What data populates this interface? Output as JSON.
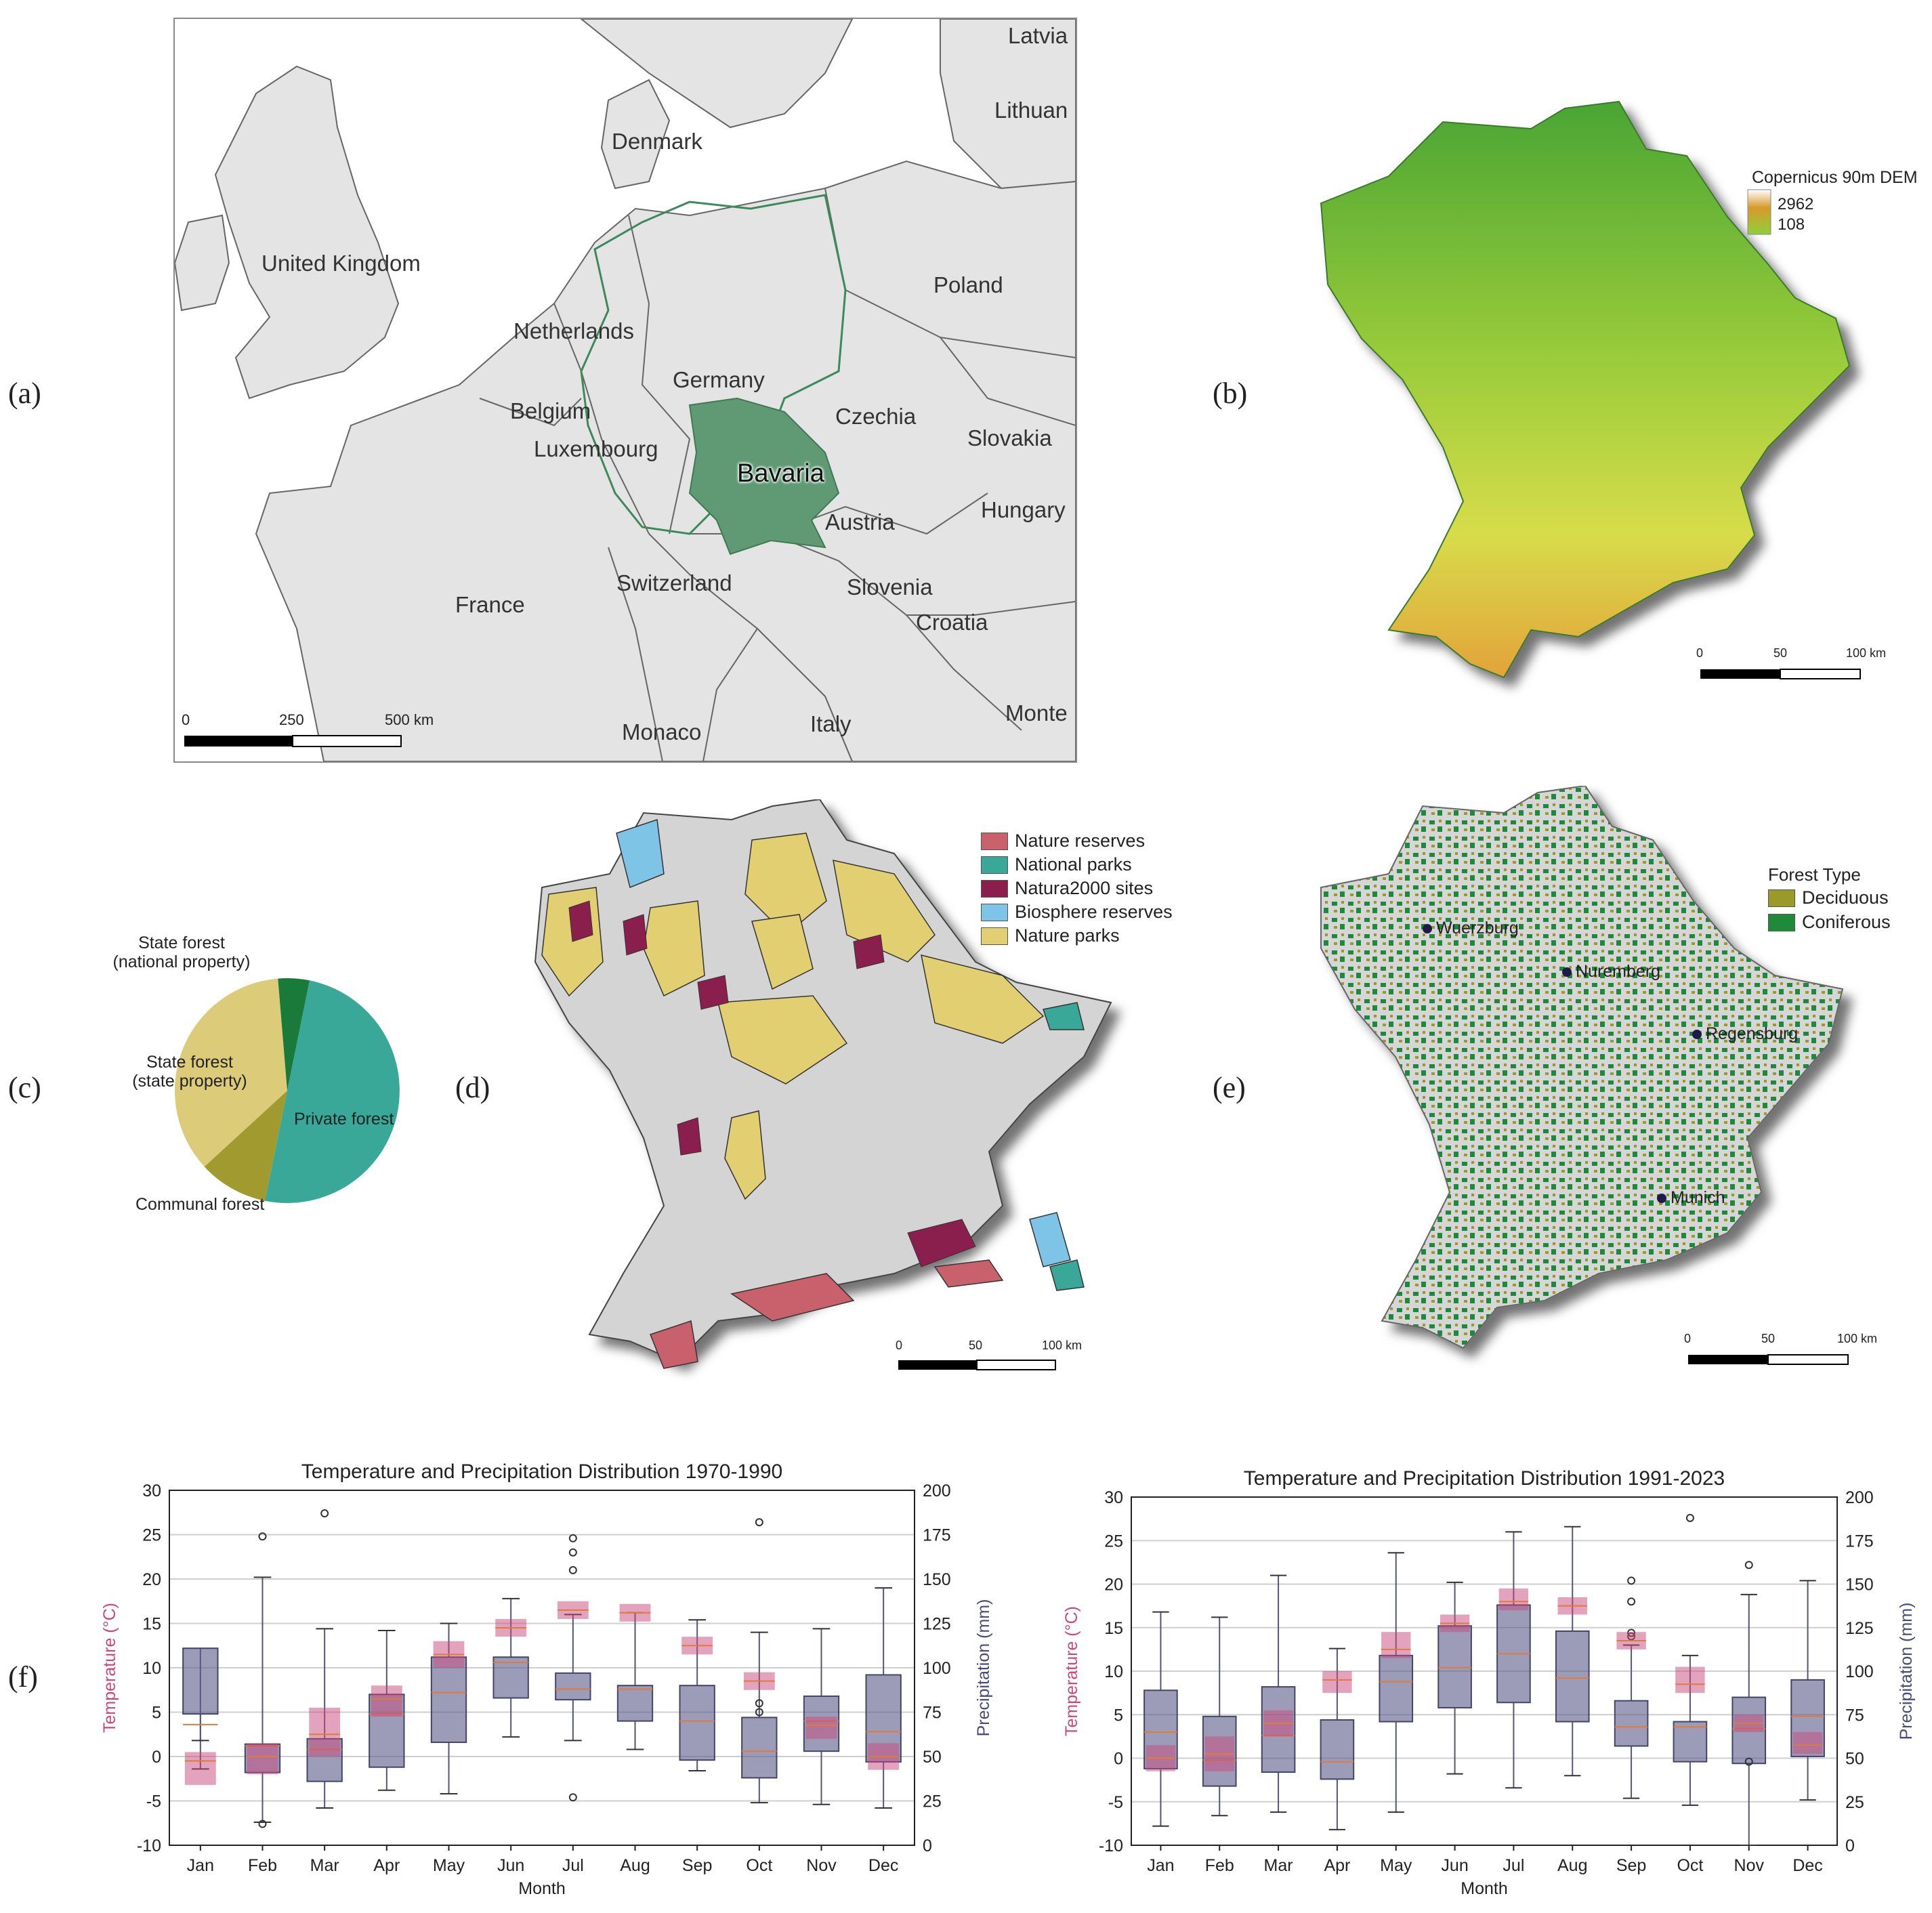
{
  "panels": {
    "a": {
      "label": "(a)"
    },
    "b": {
      "label": "(b)"
    },
    "c": {
      "label": "(c)"
    },
    "d": {
      "label": "(d)"
    },
    "e": {
      "label": "(e)"
    },
    "f": {
      "label": "(f)"
    }
  },
  "map_a": {
    "countries": [
      "Latvia",
      "Lithuan",
      "Denmark",
      "United Kingdom",
      "Poland",
      "Netherlands",
      "Germany",
      "Belgium",
      "Czechia",
      "Slovakia",
      "Luxembourg",
      "Bavaria",
      "Hungary",
      "Austria",
      "Switzerland",
      "Slovenia",
      "France",
      "Croatia",
      "Monte",
      "Italy",
      "Monaco"
    ],
    "scale": {
      "ticks": [
        "0",
        "250",
        "500 km"
      ]
    }
  },
  "map_b": {
    "legend_title": "Copernicus 90m DEM",
    "legend_max": "2962",
    "legend_min": "108",
    "scale": {
      "ticks": [
        "0",
        "50",
        "100 km"
      ]
    }
  },
  "pie_c": {
    "labels": {
      "state_national_1": "State forest",
      "state_national_2": "(national property)",
      "state_state_1": "State forest",
      "state_state_2": "(state property)",
      "private": "Private forest",
      "communal": "Communal forest"
    },
    "colors": {
      "private": "#3aa898",
      "communal": "#a19a2e",
      "state_state": "#dccb78",
      "state_national": "#1a7a3a"
    }
  },
  "map_d": {
    "legend": [
      "Nature reserves",
      "National parks",
      "Natura2000 sites",
      "Biosphere reserves",
      "Nature parks"
    ],
    "colors": [
      "#c8616b",
      "#3aa898",
      "#8a1f4e",
      "#7ec4e6",
      "#e2cf72"
    ],
    "scale": {
      "ticks": [
        "0",
        "50",
        "100 km"
      ]
    }
  },
  "map_e": {
    "legend_title": "Forest Type",
    "legend": [
      "Deciduous",
      "Coniferous"
    ],
    "colors": [
      "#9a9a2a",
      "#1f8a3a"
    ],
    "cities": [
      "Wuerzburg",
      "Nuremberg",
      "Regensburg",
      "Munich"
    ],
    "scale": {
      "ticks": [
        "0",
        "50",
        "100 km"
      ]
    }
  },
  "chart_data": [
    {
      "type": "box",
      "title": "Temperature and Precipitation Distribution 1970-1990",
      "xlabel": "Month",
      "ylabel_left": "Temperature (°C)",
      "ylabel_right": "Precipitation (mm)",
      "categories": [
        "Jan",
        "Feb",
        "Mar",
        "Apr",
        "May",
        "Jun",
        "Jul",
        "Aug",
        "Sep",
        "Oct",
        "Nov",
        "Dec"
      ],
      "ylim_left": [
        -10,
        30
      ],
      "ylim_right": [
        0,
        200
      ],
      "yticks_left": [
        "-10",
        "-5",
        "0",
        "5",
        "10",
        "15",
        "20",
        "25",
        "30"
      ],
      "yticks_right": [
        "0",
        "25",
        "50",
        "75",
        "100",
        "125",
        "150",
        "175",
        "200"
      ],
      "temperature_iqr": [
        [
          -3.2,
          0.5
        ],
        [
          -2.0,
          1.5
        ],
        [
          0,
          5.5
        ],
        [
          4.5,
          8
        ],
        [
          10,
          13
        ],
        [
          13.5,
          15.5
        ],
        [
          15.5,
          17.5
        ],
        [
          15.2,
          17.2
        ],
        [
          11.5,
          13.5
        ],
        [
          7.5,
          9.5
        ],
        [
          2,
          4.5
        ],
        [
          -1.5,
          1.5
        ]
      ],
      "temperature_median": [
        -0.5,
        0,
        2.5,
        6.5,
        11.5,
        14.5,
        16.5,
        16.2,
        12.5,
        8.5,
        3.5,
        0
      ],
      "precip_box": [
        [
          43,
          74,
          95,
          111,
          59
        ],
        [
          13,
          41,
          47,
          57,
          151
        ],
        [
          21,
          36,
          46,
          60,
          122
        ],
        [
          31,
          44,
          62,
          85,
          121
        ],
        [
          29,
          58,
          72,
          106,
          125
        ],
        [
          61,
          83,
          97,
          106,
          139
        ],
        [
          59,
          82,
          88,
          97,
          130
        ],
        [
          54,
          70,
          79,
          90,
          131
        ],
        [
          42,
          48,
          58,
          90,
          127
        ],
        [
          24,
          38,
          53,
          72,
          120
        ],
        [
          23,
          53,
          63,
          84,
          122
        ],
        [
          21,
          47,
          64,
          96,
          145
        ]
      ],
      "precip_median": [
        68,
        56,
        54,
        74,
        86,
        103,
        88,
        88,
        70,
        53,
        70,
        64
      ],
      "precip_outliers": [
        [],
        [
          174,
          12
        ],
        [
          187
        ],
        [],
        [],
        [],
        [
          173,
          165,
          155,
          27
        ],
        [],
        [],
        [
          182,
          80,
          75
        ],
        [],
        []
      ]
    },
    {
      "type": "box",
      "title": "Temperature and Precipitation Distribution 1991-2023",
      "xlabel": "Month",
      "ylabel_left": "Temperature (°C)",
      "ylabel_right": "Precipitation (mm)",
      "categories": [
        "Jan",
        "Feb",
        "Mar",
        "Apr",
        "May",
        "Jun",
        "Jul",
        "Aug",
        "Sep",
        "Oct",
        "Nov",
        "Dec"
      ],
      "ylim_left": [
        -10,
        30
      ],
      "ylim_right": [
        0,
        200
      ],
      "yticks_left": [
        "-10",
        "-5",
        "0",
        "5",
        "10",
        "15",
        "20",
        "25",
        "30"
      ],
      "yticks_right": [
        "0",
        "25",
        "50",
        "75",
        "100",
        "125",
        "150",
        "175",
        "200"
      ],
      "temperature_iqr": [
        [
          -1.5,
          1.5
        ],
        [
          -1.5,
          2.5
        ],
        [
          2.5,
          5.5
        ],
        [
          7.5,
          10
        ],
        [
          11.5,
          14.5
        ],
        [
          14.5,
          16.5
        ],
        [
          17,
          19.5
        ],
        [
          16.5,
          18.5
        ],
        [
          12.5,
          14.5
        ],
        [
          7.5,
          10.5
        ],
        [
          3,
          5
        ],
        [
          0.5,
          3
        ]
      ],
      "temperature_median": [
        0,
        0.5,
        4,
        9,
        12.5,
        15.5,
        18,
        17.5,
        13.5,
        8.5,
        4,
        1.5
      ],
      "precip_box": [
        [
          11,
          44,
          52,
          89,
          134
        ],
        [
          17,
          34,
          47,
          74,
          131
        ],
        [
          19,
          42,
          53,
          91,
          155
        ],
        [
          9,
          38,
          46,
          72,
          113
        ],
        [
          19,
          71,
          87,
          109,
          168
        ],
        [
          41,
          79,
          93,
          126,
          151
        ],
        [
          33,
          82,
          98,
          138,
          180
        ],
        [
          40,
          71,
          97,
          123,
          183
        ],
        [
          27,
          57,
          63,
          83,
          115
        ],
        [
          23,
          48,
          59,
          71,
          109
        ],
        [
          0,
          47,
          57,
          85,
          144
        ],
        [
          26,
          51,
          60,
          95,
          152
        ]
      ],
      "precip_median": [
        65,
        49,
        63,
        48,
        94,
        102,
        110,
        96,
        68,
        68,
        67,
        74
      ],
      "precip_outliers": [
        [],
        [],
        [],
        [],
        [],
        [],
        [],
        [],
        [
          152,
          140,
          122,
          120
        ],
        [
          188
        ],
        [
          161,
          48
        ],
        []
      ]
    }
  ]
}
